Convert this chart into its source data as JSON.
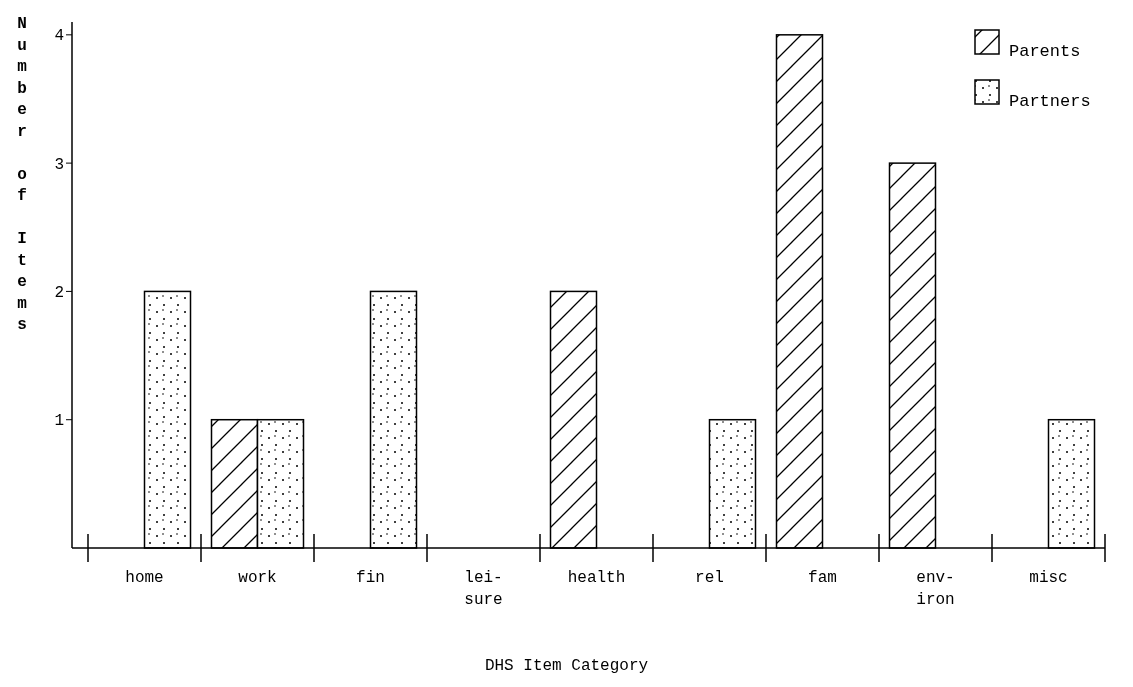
{
  "chart_data": {
    "type": "bar",
    "xlabel": "DHS Item Category",
    "ylabel": "Number of Items",
    "categories": [
      "home",
      "work",
      "fin",
      "lei-\nsure",
      "health",
      "rel",
      "fam",
      "env-\niron",
      "misc"
    ],
    "series": [
      {
        "name": "Parents",
        "color": "#000000",
        "values": [
          null,
          1,
          null,
          null,
          2,
          null,
          4,
          3,
          null
        ]
      },
      {
        "name": "Partners",
        "color": "#000000",
        "values": [
          2,
          1,
          2,
          null,
          null,
          1,
          null,
          null,
          1
        ]
      }
    ],
    "ylim": [
      0,
      4.1
    ],
    "yticks": [
      1,
      2,
      3,
      4
    ],
    "legend": "top right",
    "grid": false
  }
}
